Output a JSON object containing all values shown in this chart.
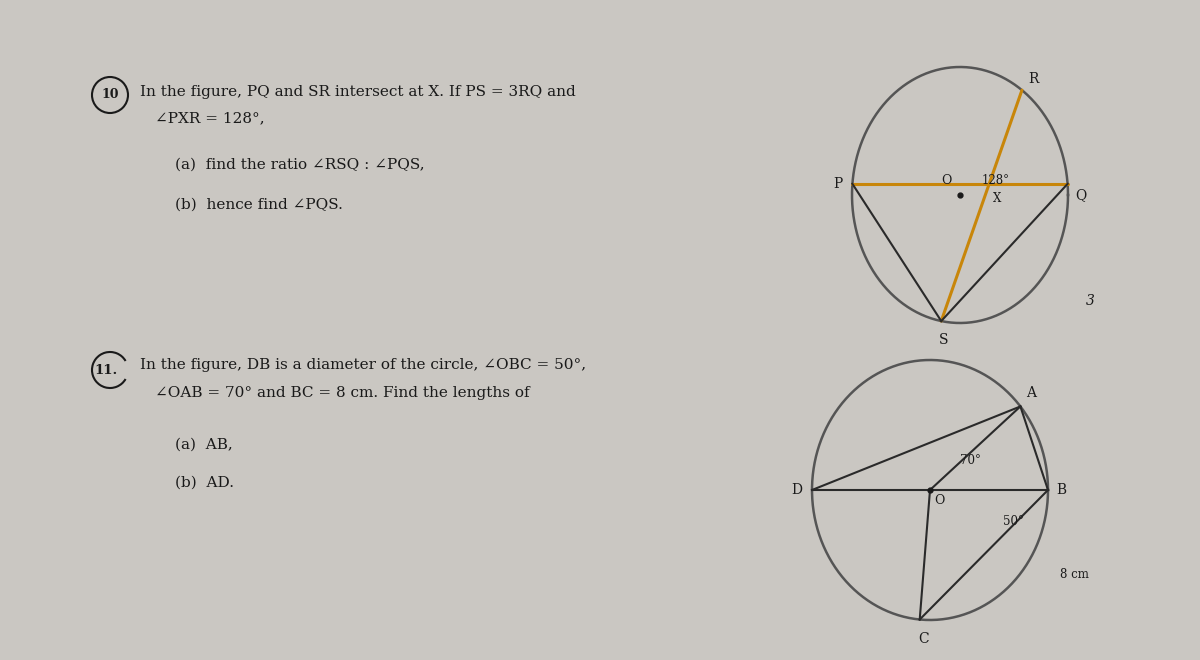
{
  "bg_color": "#cac7c2",
  "text_color": "#1a1a1a",
  "orange_color": "#c8860a",
  "dark_color": "#2a2a2a",
  "circle_color": "#555555",
  "problem10_line1": "In the figure, PQ and SR intersect at X. If PS = 3RQ and",
  "problem10_line2": "∠PXR = 128°,",
  "problem10_a": "(a)  find the ratio ∠RSQ : ∠PQS,",
  "problem10_b": "(b)  hence find ∠PQS.",
  "problem11_line1": "In the figure, DB is a diameter of the circle, ∠OBC = 50°,",
  "problem11_line2": "∠OAB = 70° and BC = 8 cm. Find the lengths of",
  "problem11_a": "(a)  AB,",
  "problem11_b": "(b)  AD."
}
